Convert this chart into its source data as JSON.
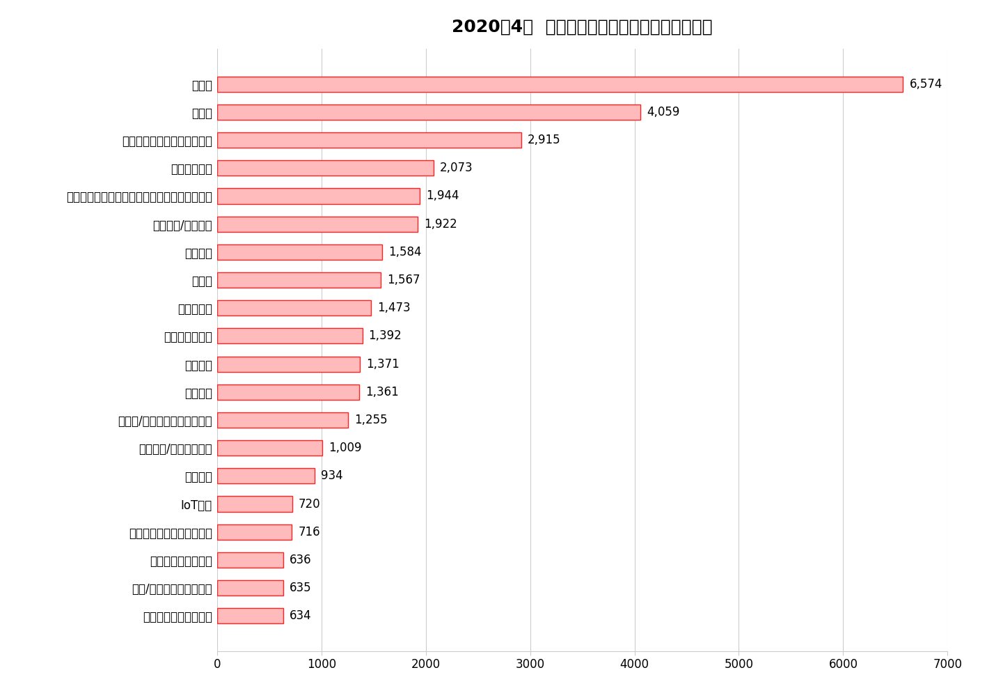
{
  "title": "2020年4月  前年比より増加した職種ランキング",
  "categories": [
    "カーエレクトロニクス",
    "電気/ハイブリッド自動車",
    "電気設計・電源設計",
    "水インフラ開発・水質保全",
    "IoT技術",
    "産業機械",
    "運転支援/自動運転技術",
    "超小型/パーソナルモビリティ",
    "通信技術",
    "機械設計",
    "半導体製造装置",
    "自動車部品",
    "半導体",
    "回路設計",
    "電気制御/機械制御",
    "ファクトリーオートメーション・産業ロボット",
    "無線通信技術",
    "フラットパネルディスプレイ",
    "設計職",
    "開発職"
  ],
  "values": [
    634,
    635,
    636,
    716,
    720,
    934,
    1009,
    1255,
    1361,
    1371,
    1392,
    1473,
    1567,
    1584,
    1922,
    1944,
    2073,
    2915,
    4059,
    6574
  ],
  "bar_color_face": "#FFBBBB",
  "bar_color_edge": "#FF2222",
  "title_fontsize": 18,
  "label_fontsize": 12,
  "value_fontsize": 12,
  "tick_fontsize": 12,
  "xlim": [
    0,
    7000
  ],
  "xticks": [
    0,
    1000,
    2000,
    3000,
    4000,
    5000,
    6000,
    7000
  ],
  "xtick_labels": [
    "0",
    "1000",
    "2000",
    "3000",
    "4000",
    "5000",
    "6000",
    "7000"
  ],
  "background_color": "#FFFFFF",
  "grid_color": "#CCCCCC"
}
